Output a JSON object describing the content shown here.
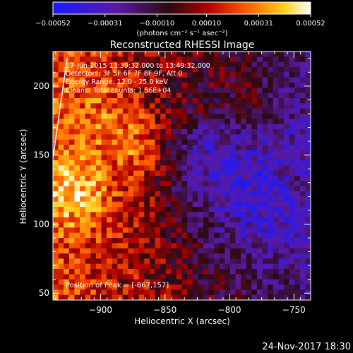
{
  "chart_data": {
    "type": "heatmap",
    "title": "Reconstructed RHESSI Image",
    "xlabel": "Heliocentric X (arcsec)",
    "ylabel": "Heliocentric Y (arcsec)",
    "xlim": [
      -937,
      -737
    ],
    "ylim": [
      45,
      225
    ],
    "x_ticks": [
      -900,
      -850,
      -800,
      -750
    ],
    "x_tick_labels": [
      "−900",
      "−850",
      "−800",
      "−750"
    ],
    "y_ticks": [
      50,
      100,
      150,
      200
    ],
    "y_tick_labels": [
      "50",
      "100",
      "150",
      "200"
    ],
    "colorbar": {
      "range": [
        -0.00052,
        0.00052
      ],
      "ticks": [
        -0.00052,
        -0.00031,
        -0.0001,
        0.0001,
        0.00031,
        0.00052
      ],
      "tick_labels": [
        "−0.00052",
        "−0.00031",
        "−0.00010",
        "0.00010",
        "0.00031",
        "0.00052"
      ],
      "units_label": "(photons cm⁻² s⁻¹ asec⁻²)",
      "colormap": "blue-purple-red-orange-yellow-white"
    },
    "info": {
      "time_range": "17-Jun-2015 13:39:32.000 to 13:49:32.000",
      "detectors": "Detectors: 3F 5F 6F 7F 8F 9F, Att 0",
      "energy": "Energy Range: 12.0 - 25.0 keV",
      "clean": "Clean    Total counts: 1.56E+04",
      "peak": "Position of Peak = [-867,157]"
    },
    "peak_position": [
      -867,
      157
    ],
    "limb_line": {
      "x": [
        -937,
        -926
      ],
      "y": [
        148,
        220
      ]
    }
  },
  "footer": {
    "date": "24-Nov-2017 18:30"
  }
}
